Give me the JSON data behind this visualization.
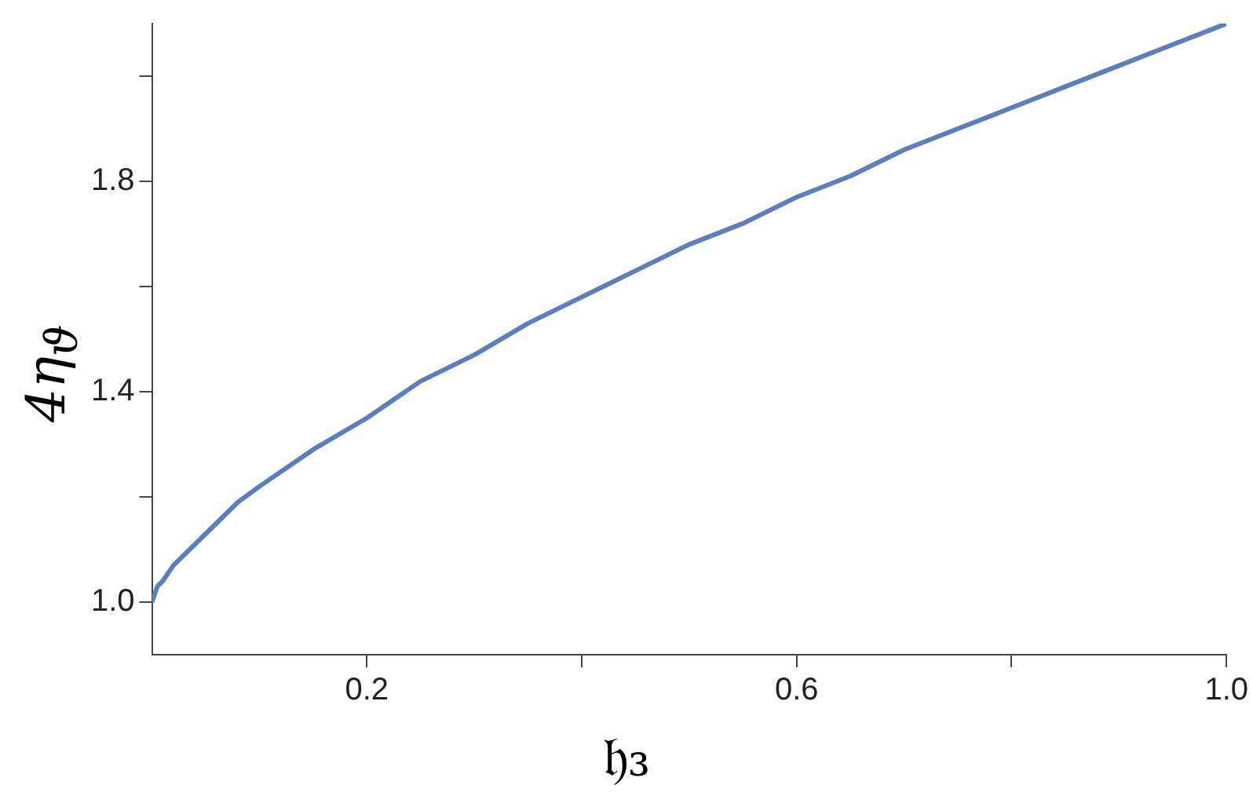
{
  "chart_data": {
    "type": "line",
    "xlabel": "𝔥₃",
    "ylabel": "4η$_{ϑ}$",
    "x": [
      0,
      0.005,
      0.01,
      0.02,
      0.04,
      0.06,
      0.08,
      0.1,
      0.15,
      0.2,
      0.25,
      0.3,
      0.35,
      0.4,
      0.45,
      0.5,
      0.55,
      0.6,
      0.65,
      0.7,
      0.75,
      0.8,
      0.85,
      0.9,
      0.95,
      1.0
    ],
    "series": [
      {
        "color": "#5b7fbd",
        "values": [
          1.0,
          1.03,
          1.04,
          1.07,
          1.11,
          1.15,
          1.19,
          1.22,
          1.29,
          1.35,
          1.42,
          1.47,
          1.53,
          1.58,
          1.63,
          1.68,
          1.72,
          1.77,
          1.81,
          1.86,
          1.9,
          1.94,
          1.98,
          2.02,
          2.06,
          2.1
        ]
      }
    ],
    "xlim": [
      0,
      1
    ],
    "xticks": [
      {
        "value": 0.2,
        "label": "0.2"
      },
      {
        "value": 0.4,
        "label": null
      },
      {
        "value": 0.6,
        "label": "0.6"
      },
      {
        "value": 0.8,
        "label": null
      },
      {
        "value": 1,
        "label": "1.0"
      }
    ],
    "ylim": [
      0.9,
      2.1
    ],
    "yticks": [
      {
        "value": 1,
        "label": "1.0"
      },
      {
        "value": 1.2,
        "label": null
      },
      {
        "value": 1.4,
        "label": "1.4"
      },
      {
        "value": 1.6,
        "label": null
      },
      {
        "value": 1.8,
        "label": "1.8"
      },
      {
        "value": 2.0,
        "label": null
      }
    ],
    "grid": false,
    "legend": false,
    "marker": "none",
    "line_style": "solid"
  }
}
